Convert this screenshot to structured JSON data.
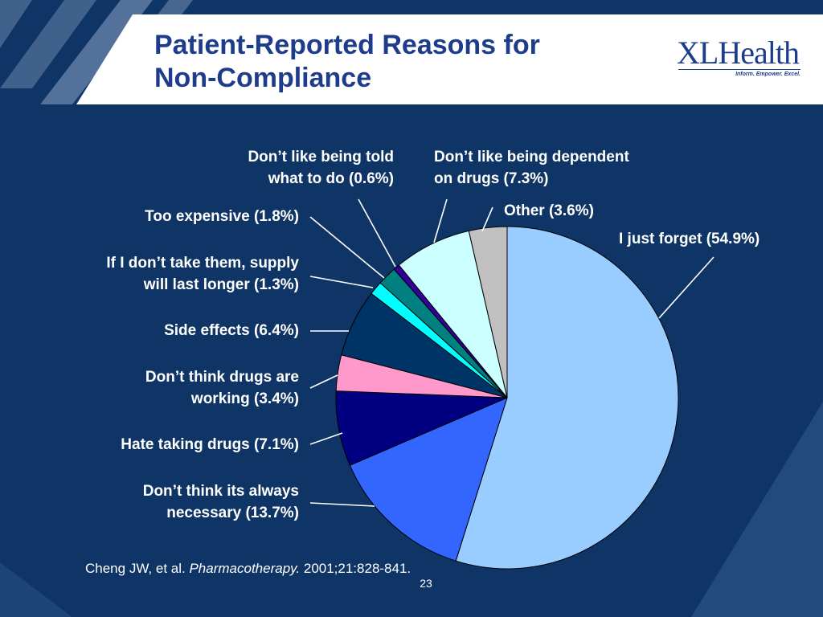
{
  "slide": {
    "title_line1": "Patient-Reported Reasons for",
    "title_line2": "Non-Compliance",
    "logo": {
      "text": "XLHealth",
      "tagline": "Inform. Empower. Excel."
    },
    "citation": {
      "authors": "Cheng JW, et al.",
      "journal": "Pharmacotherapy.",
      "details": "2001;21:828-841."
    },
    "slide_number": "23",
    "colors": {
      "background": "#0f3466",
      "header": "#ffffff",
      "title": "#1e3c8c"
    }
  },
  "chart_data": {
    "type": "pie",
    "title": "",
    "slices": [
      {
        "label": "I just forget (54.9%)",
        "value": 54.9,
        "color": "#99ccff"
      },
      {
        "label": "Don’t think its always\nnecessary (13.7%)",
        "value": 13.7,
        "color": "#3366ff"
      },
      {
        "label": "Hate taking drugs (7.1%)",
        "value": 7.1,
        "color": "#000080"
      },
      {
        "label": "Don’t think drugs are\nworking (3.4%)",
        "value": 3.4,
        "color": "#ff99cc"
      },
      {
        "label": "Side effects (6.4%)",
        "value": 6.4,
        "color": "#003366"
      },
      {
        "label": "If I don’t take them, supply\nwill last longer (1.3%)",
        "value": 1.3,
        "color": "#00ffff"
      },
      {
        "label": "Too expensive (1.8%)",
        "value": 1.8,
        "color": "#008080"
      },
      {
        "label": "Don’t like being told\nwhat to do (0.6%)",
        "value": 0.6,
        "color": "#330099"
      },
      {
        "label": "Don’t like being dependent\non drugs (7.3%)",
        "value": 7.3,
        "color": "#ccffff"
      },
      {
        "label": "Other (3.6%)",
        "value": 3.6,
        "color": "#c0c0c0"
      }
    ],
    "start_angle": "12 o'clock",
    "direction": "clockwise",
    "legend": "none"
  }
}
